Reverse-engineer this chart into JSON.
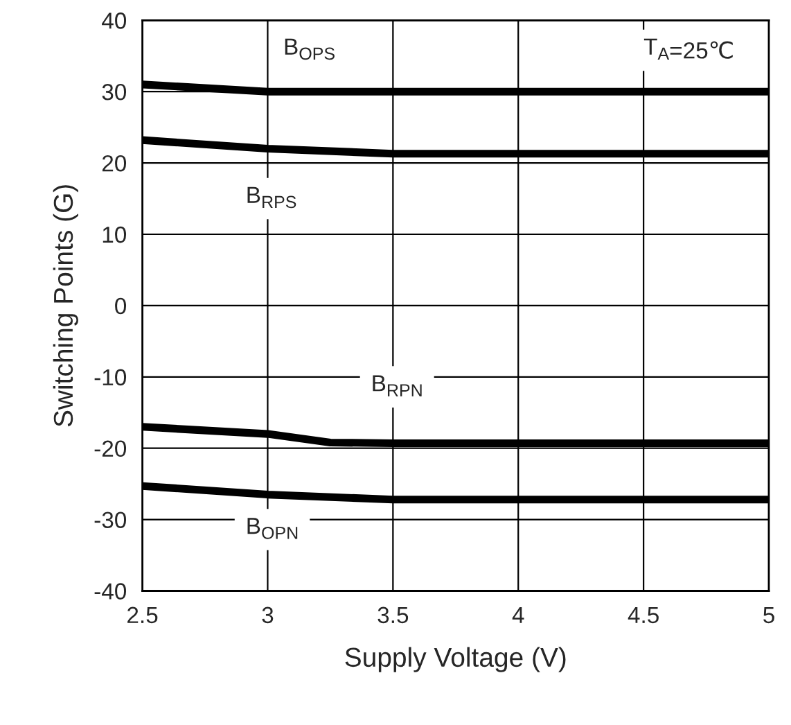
{
  "chart_data": {
    "type": "line",
    "xlabel": "Supply Voltage (V)",
    "ylabel": "Switching Points (G)",
    "xlim": [
      2.5,
      5
    ],
    "ylim": [
      -40,
      40
    ],
    "xticks": [
      2.5,
      3,
      3.5,
      4,
      4.5,
      5
    ],
    "yticks": [
      -40,
      -30,
      -20,
      -10,
      0,
      10,
      20,
      30,
      40
    ],
    "grid": true,
    "legend": false,
    "marker": "none",
    "line_style": "solid",
    "series": [
      {
        "color": "#000000",
        "x": [
          2.5,
          3,
          3.5,
          4,
          4.5,
          5
        ],
        "values": [
          31,
          30,
          30,
          30,
          30,
          30
        ]
      },
      {
        "color": "#000000",
        "x": [
          2.5,
          3,
          3.5,
          4,
          4.5,
          5
        ],
        "values": [
          23.2,
          22,
          21.3,
          21.3,
          21.3,
          21.3
        ]
      },
      {
        "color": "#000000",
        "x": [
          2.5,
          3,
          3.25,
          3.5,
          4,
          4.5,
          5
        ],
        "values": [
          -17,
          -18,
          -19.2,
          -19.3,
          -19.3,
          -19.3,
          -19.3
        ]
      },
      {
        "color": "#000000",
        "x": [
          2.5,
          3,
          3.5,
          4,
          4.5,
          5
        ],
        "values": [
          -25.3,
          -26.5,
          -27.2,
          -27.2,
          -27.2,
          -27.2
        ]
      }
    ],
    "annotations": [
      "B$_{OPS}$",
      "B$_{RPS}$",
      "B$_{RPN}$",
      "B$_{OPN}$",
      "T$_{A}$=25℃"
    ]
  }
}
